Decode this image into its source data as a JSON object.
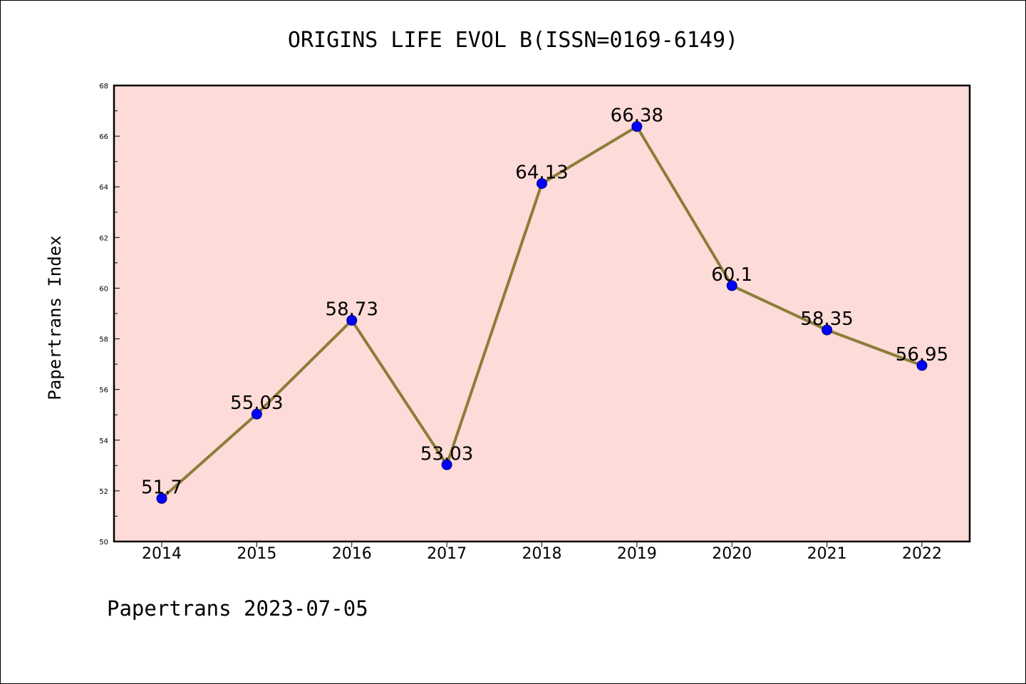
{
  "chart_data": {
    "type": "line",
    "title": "ORIGINS LIFE EVOL B(ISSN=0169-6149)",
    "xlabel": "",
    "ylabel": "Papertrans Index",
    "footer": "Papertrans 2023-07-05",
    "categories": [
      "2014",
      "2015",
      "2016",
      "2017",
      "2018",
      "2019",
      "2020",
      "2021",
      "2022"
    ],
    "values": [
      51.7,
      55.03,
      58.73,
      53.03,
      64.13,
      66.38,
      60.1,
      58.35,
      56.95
    ],
    "data_labels": [
      "51.7",
      "55.03",
      "58.73",
      "53.03",
      "64.13",
      "66.38",
      "60.1",
      "58.35",
      "56.95"
    ],
    "ylim": [
      50,
      68
    ],
    "yticks": [
      "50",
      "52",
      "54",
      "56",
      "58",
      "60",
      "62",
      "64",
      "66",
      "68"
    ],
    "grid": false,
    "legend": "none",
    "colors": {
      "plot_background": "#fddbd8",
      "line": "#8b7d3a",
      "marker_fill": "#0000ff",
      "marker_edge": "#000080",
      "axes": "#000000"
    }
  }
}
